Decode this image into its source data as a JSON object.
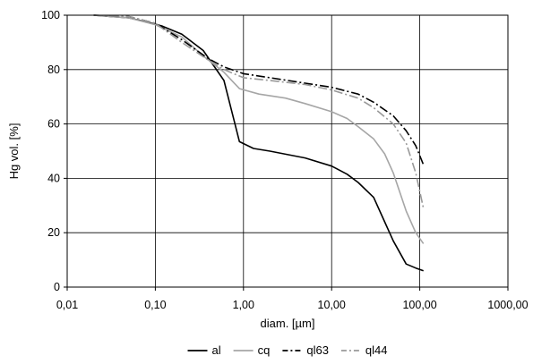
{
  "chart_data": {
    "type": "line",
    "xscale": "log",
    "xlabel": "diam. [µm]",
    "ylabel": "Hg vol. [%]",
    "xlim": [
      0.01,
      1000
    ],
    "ylim": [
      0,
      100
    ],
    "grid": true,
    "legend_position": "bottom",
    "x_ticks": [
      0.01,
      0.1,
      1,
      10,
      100,
      1000
    ],
    "x_tick_labels": [
      "0,01",
      "0,10",
      "1,00",
      "10,00",
      "100,00",
      "1000,00"
    ],
    "y_ticks": [
      0,
      20,
      40,
      60,
      80,
      100
    ],
    "y_tick_labels": [
      "0",
      "20",
      "40",
      "60",
      "80",
      "100"
    ],
    "series": [
      {
        "name": "al",
        "color": "#000000",
        "dash": "solid",
        "points": [
          [
            0.02,
            100
          ],
          [
            0.05,
            99
          ],
          [
            0.08,
            97.5
          ],
          [
            0.12,
            96
          ],
          [
            0.2,
            93
          ],
          [
            0.35,
            87
          ],
          [
            0.6,
            76
          ],
          [
            0.9,
            53.5
          ],
          [
            1.3,
            51
          ],
          [
            2,
            50
          ],
          [
            5,
            47.5
          ],
          [
            10,
            44.5
          ],
          [
            15,
            41.5
          ],
          [
            20,
            38.5
          ],
          [
            30,
            33
          ],
          [
            40,
            24
          ],
          [
            50,
            17
          ],
          [
            70,
            8.5
          ],
          [
            90,
            7
          ],
          [
            110,
            6
          ]
        ]
      },
      {
        "name": "cq",
        "color": "#a6a6a6",
        "dash": "solid",
        "points": [
          [
            0.02,
            100
          ],
          [
            0.05,
            99
          ],
          [
            0.1,
            96.5
          ],
          [
            0.2,
            92
          ],
          [
            0.35,
            85
          ],
          [
            0.6,
            79
          ],
          [
            0.9,
            73
          ],
          [
            1.5,
            71
          ],
          [
            3,
            69.5
          ],
          [
            5,
            67.5
          ],
          [
            10,
            64.5
          ],
          [
            15,
            62
          ],
          [
            20,
            59
          ],
          [
            30,
            54.5
          ],
          [
            40,
            49
          ],
          [
            50,
            42
          ],
          [
            70,
            28
          ],
          [
            90,
            20
          ],
          [
            110,
            16
          ]
        ]
      },
      {
        "name": "ql63",
        "color": "#000000",
        "dash": "10 3 2 3",
        "points": [
          [
            0.02,
            100
          ],
          [
            0.05,
            99.5
          ],
          [
            0.1,
            97
          ],
          [
            0.2,
            91
          ],
          [
            0.4,
            84
          ],
          [
            0.6,
            81
          ],
          [
            1,
            78.5
          ],
          [
            2,
            77
          ],
          [
            5,
            75
          ],
          [
            10,
            73.5
          ],
          [
            20,
            71
          ],
          [
            30,
            68
          ],
          [
            50,
            63
          ],
          [
            70,
            57.5
          ],
          [
            90,
            52
          ],
          [
            110,
            45
          ]
        ]
      },
      {
        "name": "ql44",
        "color": "#999999",
        "dash": "10 3 2 3",
        "points": [
          [
            0.02,
            100
          ],
          [
            0.05,
            99.5
          ],
          [
            0.1,
            97
          ],
          [
            0.2,
            90
          ],
          [
            0.4,
            83.5
          ],
          [
            0.6,
            80
          ],
          [
            1,
            77
          ],
          [
            2,
            76
          ],
          [
            5,
            74.5
          ],
          [
            10,
            72.5
          ],
          [
            20,
            69.5
          ],
          [
            30,
            66
          ],
          [
            50,
            60
          ],
          [
            70,
            53
          ],
          [
            90,
            42
          ],
          [
            110,
            29
          ]
        ]
      }
    ]
  }
}
